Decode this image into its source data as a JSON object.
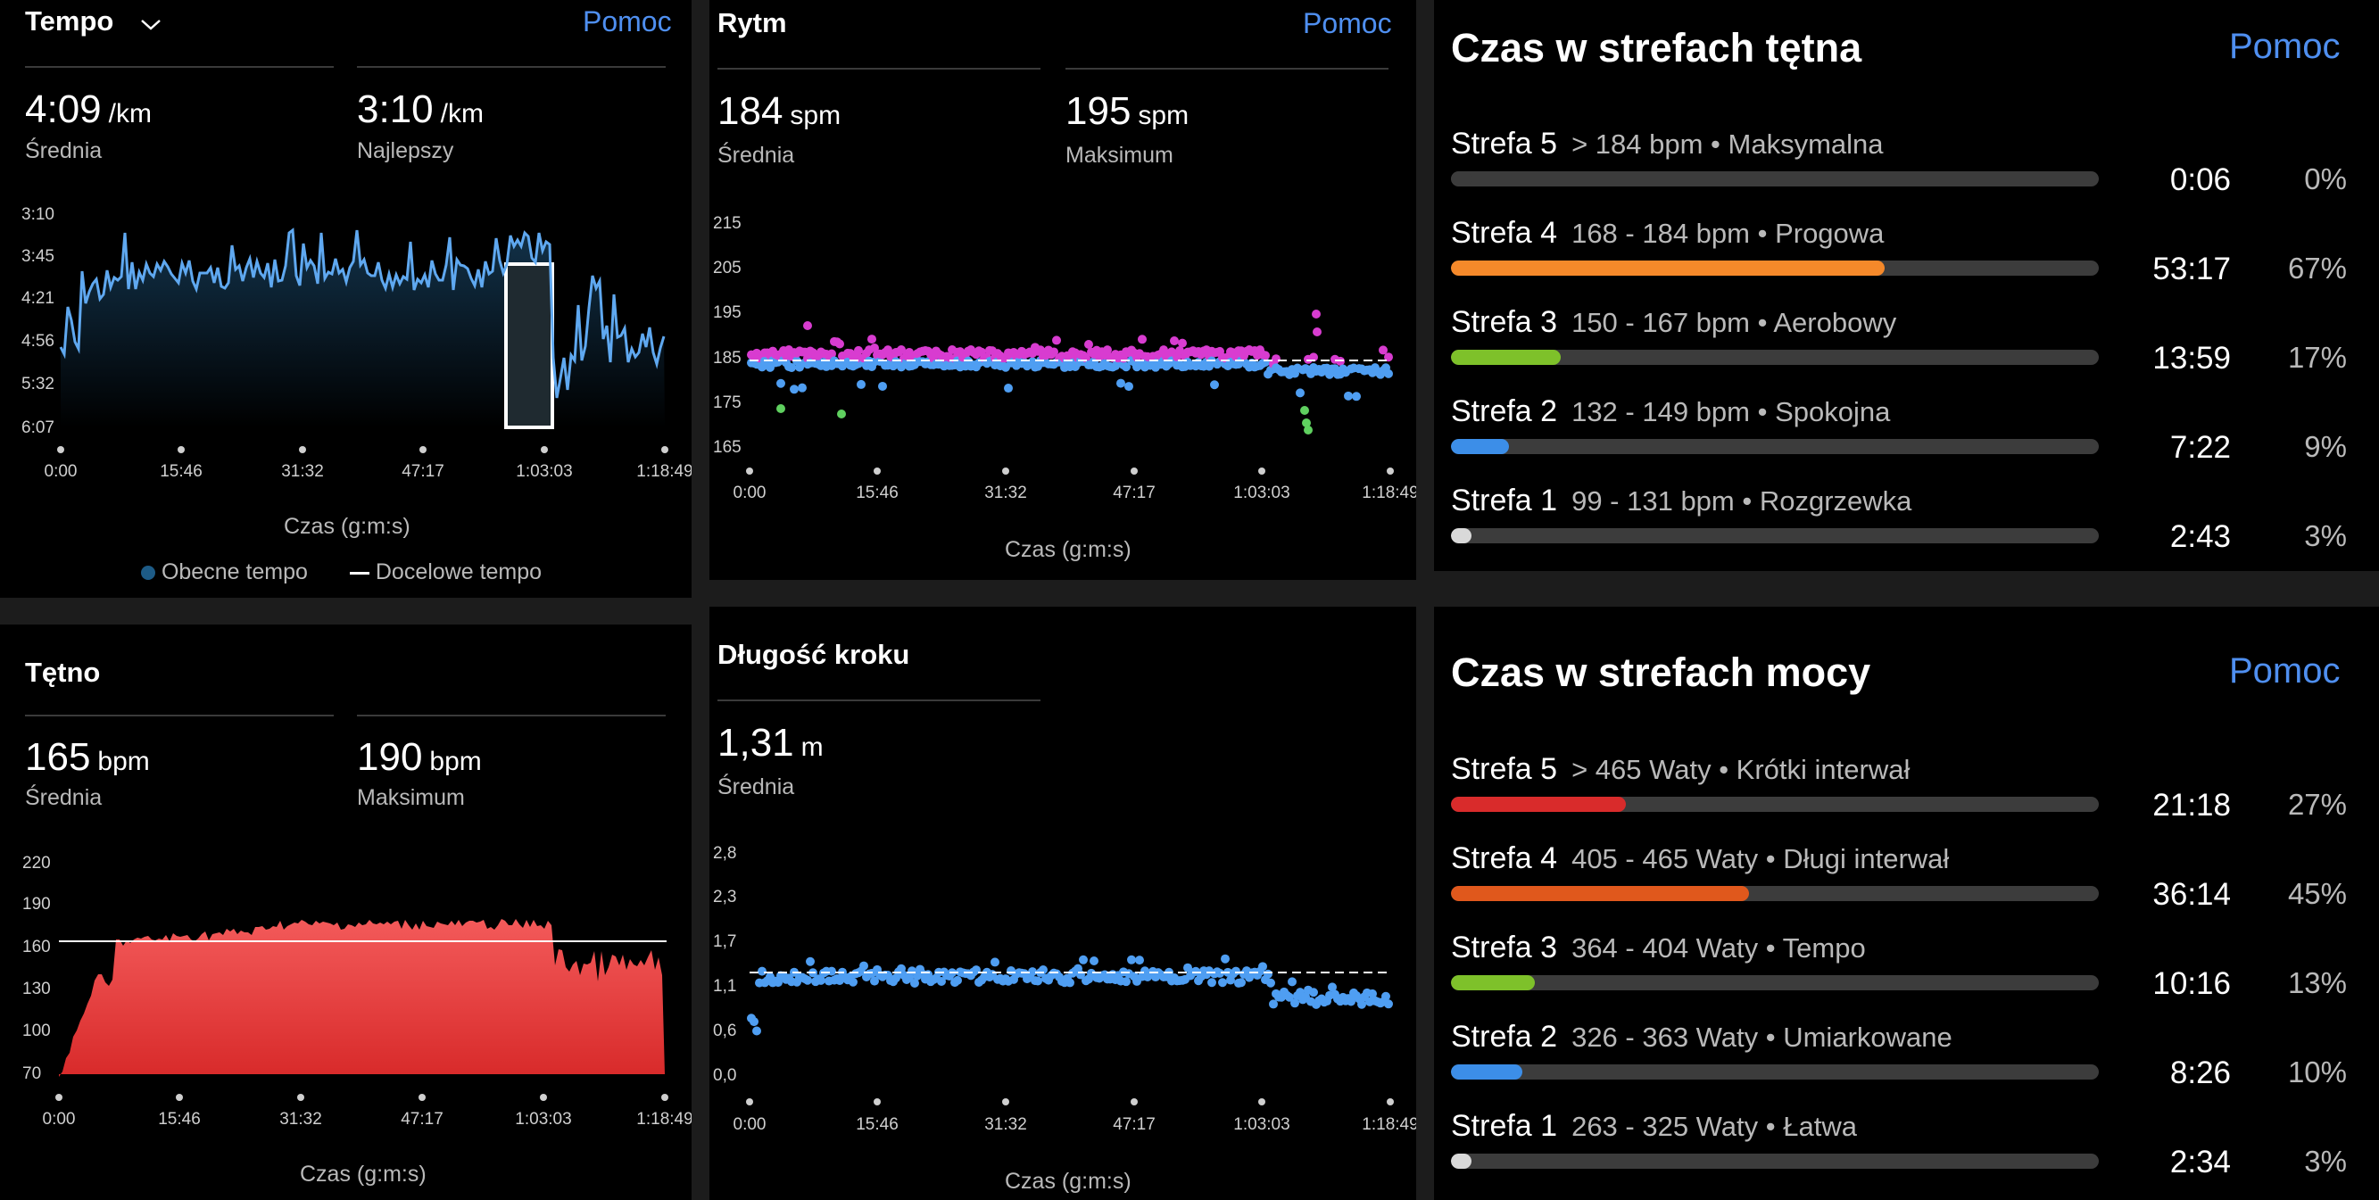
{
  "tempo": {
    "title": "Tempo",
    "help": "Pomoc",
    "avg": {
      "value": "4:09",
      "unit": "/km",
      "label": "Średnia"
    },
    "best": {
      "value": "3:10",
      "unit": "/km",
      "label": "Najlepszy"
    },
    "y_ticks": [
      "3:10",
      "3:45",
      "4:21",
      "4:56",
      "5:32",
      "6:07"
    ],
    "x_ticks": [
      "0:00",
      "15:46",
      "31:32",
      "47:17",
      "1:03:03",
      "1:18:49"
    ],
    "x_label": "Czas (g:m:s)",
    "legend": [
      {
        "label": "Obecne tempo",
        "color": "#1d5b86"
      },
      {
        "label": "Docelowe tempo",
        "color": "#ffffff"
      }
    ]
  },
  "rytm": {
    "title": "Rytm",
    "help": "Pomoc",
    "avg": {
      "value": "184",
      "unit": "spm",
      "label": "Średnia"
    },
    "max": {
      "value": "195",
      "unit": "spm",
      "label": "Maksimum"
    },
    "y_ticks": [
      "215",
      "205",
      "195",
      "185",
      "175",
      "165"
    ],
    "x_ticks": [
      "0:00",
      "15:46",
      "31:32",
      "47:17",
      "1:03:03",
      "1:18:49"
    ],
    "x_label": "Czas (g:m:s)"
  },
  "tetno": {
    "title": "Tętno",
    "avg": {
      "value": "165",
      "unit": "bpm",
      "label": "Średnia"
    },
    "max": {
      "value": "190",
      "unit": "bpm",
      "label": "Maksimum"
    },
    "y_ticks": [
      "220",
      "190",
      "160",
      "130",
      "100",
      "70"
    ],
    "x_ticks": [
      "0:00",
      "15:46",
      "31:32",
      "47:17",
      "1:03:03",
      "1:18:49"
    ],
    "x_label": "Czas (g:m:s)"
  },
  "krok": {
    "title": "Długość kroku",
    "avg": {
      "value": "1,31",
      "unit": "m",
      "label": "Średnia"
    },
    "y_ticks": [
      "2,8",
      "2,3",
      "1,7",
      "1,1",
      "0,6",
      "0,0"
    ],
    "x_ticks": [
      "0:00",
      "15:46",
      "31:32",
      "47:17",
      "1:03:03",
      "1:18:49"
    ],
    "x_label": "Czas (g:m:s)"
  },
  "hr_zones": {
    "title": "Czas w strefach tętna",
    "help": "Pomoc",
    "zones": [
      {
        "name": "Strefa 5",
        "desc": "> 184 bpm • Maksymalna",
        "time": "0:06",
        "pct": "0%",
        "fill": 0.0,
        "color": "#3c3c3c"
      },
      {
        "name": "Strefa 4",
        "desc": "168 - 184 bpm • Progowa",
        "time": "53:17",
        "pct": "67%",
        "fill": 0.67,
        "color": "#f5892a"
      },
      {
        "name": "Strefa 3",
        "desc": "150 - 167 bpm • Aerobowy",
        "time": "13:59",
        "pct": "17%",
        "fill": 0.17,
        "color": "#7ec12a"
      },
      {
        "name": "Strefa 2",
        "desc": "132 - 149 bpm • Spokojna",
        "time": "7:22",
        "pct": "9%",
        "fill": 0.09,
        "color": "#3c8ee8"
      },
      {
        "name": "Strefa 1",
        "desc": "99 - 131 bpm • Rozgrzewka",
        "time": "2:43",
        "pct": "3%",
        "fill": 0.03,
        "color": "#d9d9d9"
      }
    ]
  },
  "power_zones": {
    "title": "Czas w strefach mocy",
    "help": "Pomoc",
    "zones": [
      {
        "name": "Strefa 5",
        "desc": "> 465 Waty • Krótki interwał",
        "time": "21:18",
        "pct": "27%",
        "fill": 0.27,
        "color": "#d92b2b"
      },
      {
        "name": "Strefa 4",
        "desc": "405 - 465 Waty • Długi interwał",
        "time": "36:14",
        "pct": "45%",
        "fill": 0.46,
        "color": "#e0581c"
      },
      {
        "name": "Strefa 3",
        "desc": "364 - 404 Waty • Tempo",
        "time": "10:16",
        "pct": "13%",
        "fill": 0.13,
        "color": "#7ec12a"
      },
      {
        "name": "Strefa 2",
        "desc": "326 - 363 Waty • Umiarkowane",
        "time": "8:26",
        "pct": "10%",
        "fill": 0.11,
        "color": "#3c8ee8"
      },
      {
        "name": "Strefa 1",
        "desc": "263 - 325 Waty • Łatwa",
        "time": "2:34",
        "pct": "3%",
        "fill": 0.03,
        "color": "#d9d9d9"
      }
    ]
  }
}
